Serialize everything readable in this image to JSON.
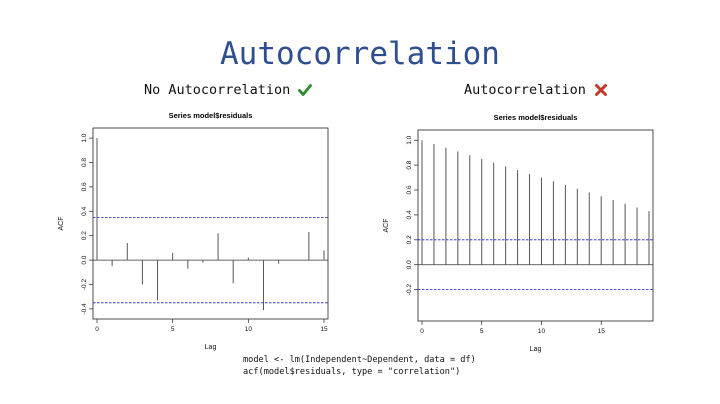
{
  "slide": {
    "title": "Autocorrelation",
    "left_heading": "No Autocorrelation",
    "right_heading": "Autocorrelation",
    "code_line1": "model <- lm(Independent~Dependent, data = df)",
    "code_line2": "acf(model$residuals, type = \"correlation\")"
  },
  "icons": {
    "left": "check-mark-icon",
    "right": "cross-mark-icon"
  },
  "colors": {
    "title": "#2e4e8f",
    "check": "#2e8b2e",
    "cross": "#c0392b",
    "confidence": "#1a1acc"
  },
  "chart_data": [
    {
      "type": "bar",
      "title": "Series  model$residuals",
      "xlabel": "Lag",
      "ylabel": "ACF",
      "x": [
        0,
        1,
        2,
        3,
        4,
        5,
        6,
        7,
        8,
        9,
        10,
        11,
        12,
        13,
        14,
        15
      ],
      "values": [
        1.0,
        -0.05,
        0.14,
        -0.2,
        -0.33,
        0.06,
        -0.07,
        -0.02,
        0.22,
        -0.19,
        0.02,
        -0.41,
        -0.03,
        0.0,
        0.23,
        0.08
      ],
      "confidence_limit": 0.35,
      "xlim": [
        0,
        15
      ],
      "ylim": [
        -0.45,
        1.05
      ],
      "xticks": [
        0,
        5,
        10,
        15
      ],
      "yticks": [
        -0.4,
        -0.2,
        0.0,
        0.2,
        0.4,
        0.6,
        0.8,
        1.0
      ],
      "ytick_labels": [
        "-0.4",
        "-0.2",
        "0.0",
        "0.2",
        "0.4",
        "0.6",
        "0.8",
        "1.0"
      ]
    },
    {
      "type": "bar",
      "title": "Series  model$residuals",
      "xlabel": "Lag",
      "ylabel": "ACF",
      "x": [
        0,
        1,
        2,
        3,
        4,
        5,
        6,
        7,
        8,
        9,
        10,
        11,
        12,
        13,
        14,
        15,
        16,
        17,
        18,
        19
      ],
      "values": [
        1.0,
        0.97,
        0.94,
        0.91,
        0.88,
        0.85,
        0.82,
        0.79,
        0.76,
        0.73,
        0.7,
        0.67,
        0.64,
        0.61,
        0.58,
        0.55,
        0.52,
        0.49,
        0.46,
        0.43
      ],
      "confidence_limit": 0.2,
      "xlim": [
        0,
        19
      ],
      "ylim": [
        -0.42,
        1.05
      ],
      "xticks": [
        0,
        5,
        10,
        15
      ],
      "yticks": [
        -0.2,
        0.0,
        0.2,
        0.4,
        0.6,
        0.8,
        1.0
      ],
      "ytick_labels": [
        "-0.2",
        "0.0",
        "0.2",
        "0.4",
        "0.6",
        "0.8",
        "1.0"
      ]
    }
  ]
}
